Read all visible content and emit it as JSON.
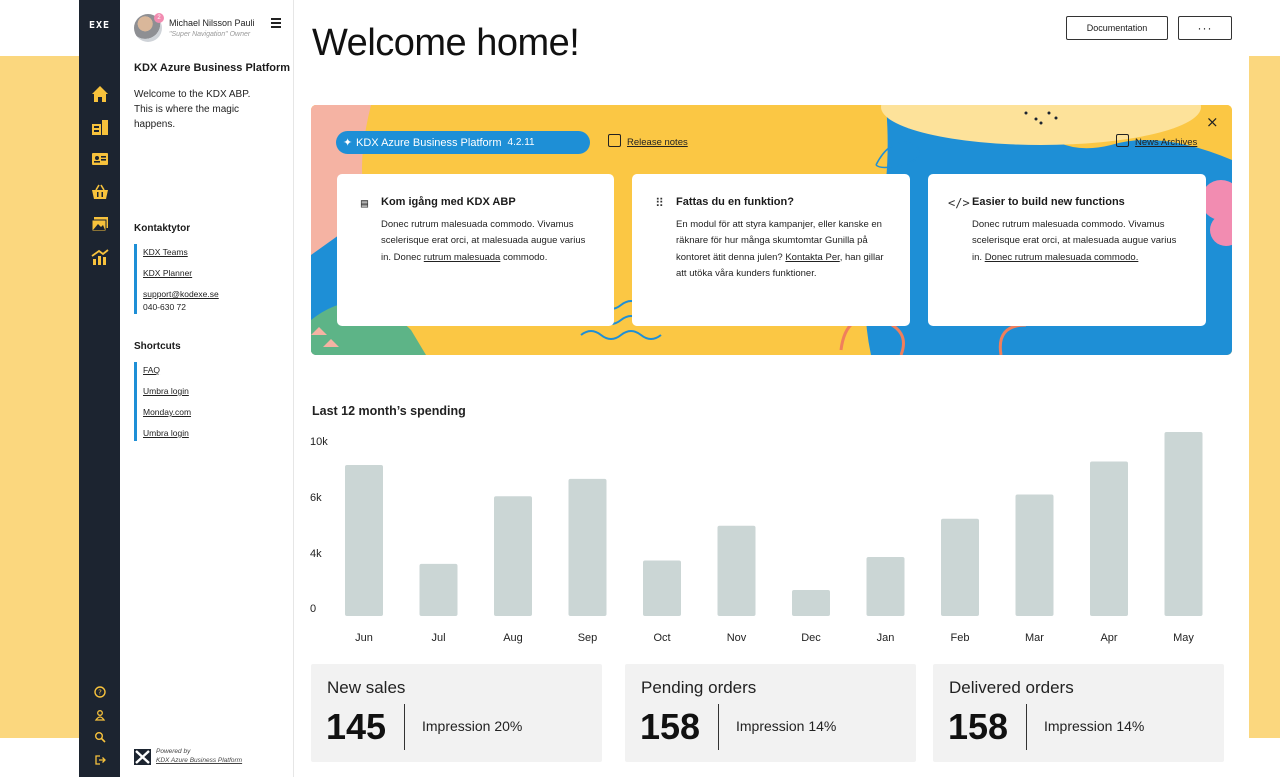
{
  "app": {
    "logo": "EXE"
  },
  "rail": {
    "nav_icons": [
      "home-icon",
      "dashboard-icon",
      "id-card-icon",
      "basket-icon",
      "gallery-icon",
      "growth-icon"
    ],
    "bottom_icons": [
      "help-icon",
      "user-icon",
      "search-icon",
      "logout-icon"
    ]
  },
  "user": {
    "name": "Michael Nilsson Pauli",
    "role": "\"Super Navigation\" Owner",
    "badge": "2"
  },
  "side": {
    "title": "KDX Azure Business Platform",
    "welcome": "Welcome to the KDX ABP. This is where the magic happens.",
    "contacts_title": "Kontaktytor",
    "contacts": [
      "KDX Teams",
      "KDX Planner"
    ],
    "support_email": "support@kodexe.se",
    "support_phone": "040-630 72",
    "shortcuts_title": "Shortcuts",
    "shortcuts": [
      "FAQ",
      "Umbra login",
      "Monday.com",
      "Umbra login"
    ],
    "powered_by": "Powered by",
    "powered_name": "KDX Azure Business Platform"
  },
  "header": {
    "title": "Welcome home!",
    "doc_button": "Documentation",
    "more_button": "···"
  },
  "hero": {
    "pill_label": "KDX Azure Business Platform",
    "pill_version": "4.2.11",
    "release_notes": "Release notes",
    "news_archives": "News Archives",
    "close": "×",
    "cards": [
      {
        "title": "Kom igång med KDX ABP",
        "text_a": "Donec rutrum malesuada commodo. Vivamus scelerisque erat orci, at malesuada augue varius in. Donec ",
        "link": "rutrum malesuada",
        "text_b": " commodo."
      },
      {
        "title": "Fattas du en funktion?",
        "text_a": "En modul för att styra kampanjer, eller kanske en räknare för hur många skumtomtar Gunilla på kontoret ätit denna julen? ",
        "link": "Kontakta Per",
        "text_b": ", han gillar att utöka våra kunders funktioner."
      },
      {
        "title": "Easier to build new functions",
        "text_a": "Donec rutrum malesuada commodo. Vivamus scelerisque erat orci, at malesuada augue varius in. ",
        "link": "Donec rutrum malesuada commodo.",
        "text_b": ""
      }
    ]
  },
  "spending": {
    "title": "Last 12 month’s spending"
  },
  "chart_data": {
    "type": "bar",
    "categories": [
      "Jun",
      "Jul",
      "Aug",
      "Sep",
      "Oct",
      "Nov",
      "Dec",
      "Jan",
      "Feb",
      "Mar",
      "Apr",
      "May"
    ],
    "values": [
      8700,
      3000,
      6900,
      7900,
      3200,
      5200,
      1500,
      3400,
      5600,
      7000,
      8900,
      10600
    ],
    "y_ticks": [
      "10k",
      "6k",
      "4k",
      "0"
    ],
    "bar_color": "#cbd6d5",
    "grid": false
  },
  "stats": [
    {
      "title": "New sales",
      "value": "145",
      "impression": "Impression 20%"
    },
    {
      "title": "Pending orders",
      "value": "158",
      "impression": "Impression 14%"
    },
    {
      "title": "Delivered orders",
      "value": "158",
      "impression": "Impression 14%"
    }
  ],
  "colors": {
    "accent": "#1e8fd6",
    "rail": "#1c2430",
    "nav_active": "#f7c23c",
    "page_bg": "#fbd77e"
  }
}
